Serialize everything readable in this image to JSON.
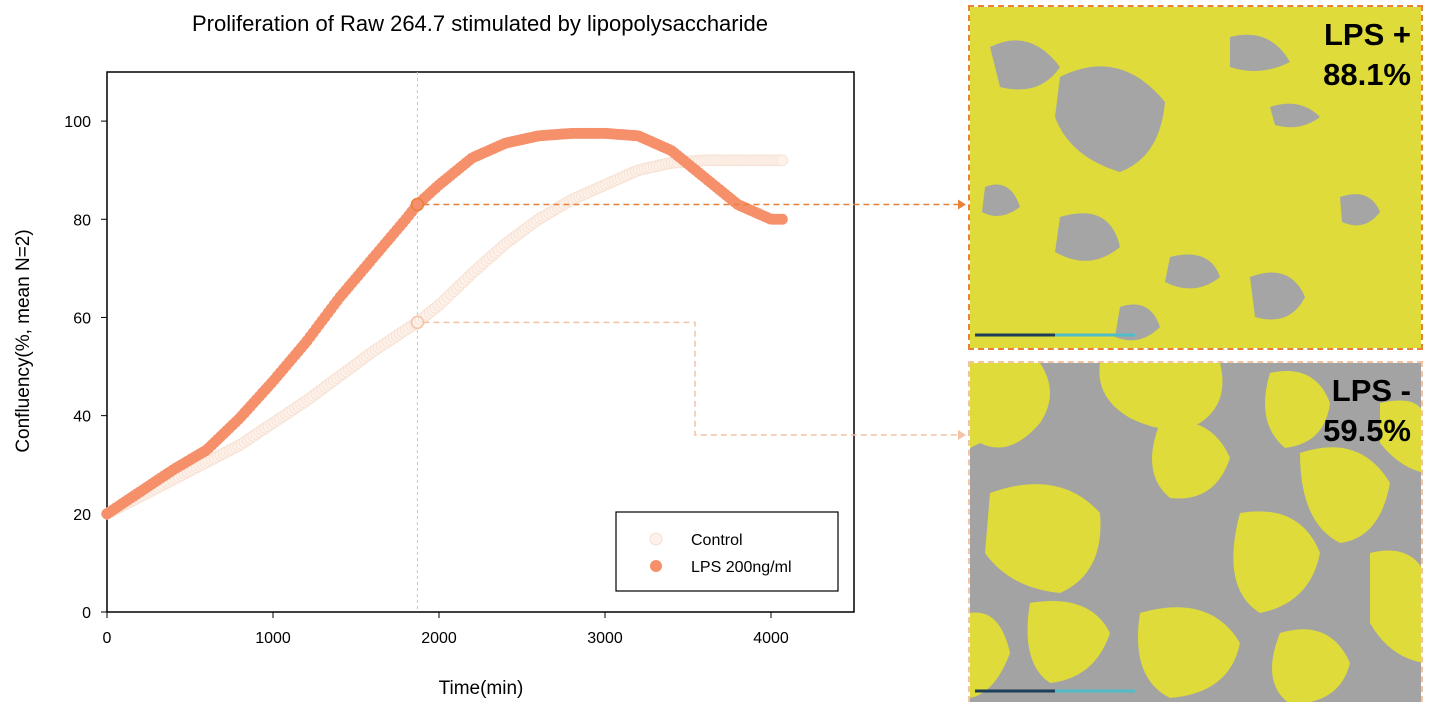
{
  "chart_data": {
    "type": "scatter",
    "title": "Proliferation of Raw 264.7 stimulated by lipopolysaccharide",
    "xlabel": "Time(min)",
    "ylabel": "Confluency(%, mean N=2)",
    "xlim": [
      0,
      4500
    ],
    "ylim": [
      0,
      110
    ],
    "xticks": [
      0,
      1000,
      2000,
      3000,
      4000
    ],
    "yticks": [
      0,
      20,
      40,
      60,
      80,
      100
    ],
    "grid": false,
    "legend_position": "bottom-right",
    "marker_line_x": 1870,
    "series": [
      {
        "name": "Control",
        "color": "#fdf1e9",
        "x": [
          0,
          200,
          400,
          600,
          800,
          1000,
          1200,
          1400,
          1600,
          1800,
          1870,
          2000,
          2200,
          2400,
          2600,
          2800,
          3000,
          3200,
          3400,
          3600,
          3800,
          4000,
          4080
        ],
        "y": [
          20,
          23.5,
          27,
          30.5,
          34,
          38.5,
          43,
          48,
          53,
          57.5,
          59,
          62.5,
          69,
          75,
          80,
          84,
          87,
          90,
          91.5,
          92,
          92,
          92,
          92
        ]
      },
      {
        "name": "LPS 200ng/ml",
        "color": "#f5906b",
        "x": [
          0,
          200,
          400,
          600,
          800,
          1000,
          1200,
          1400,
          1600,
          1800,
          1870,
          2000,
          2200,
          2400,
          2600,
          2800,
          3000,
          3200,
          3400,
          3600,
          3800,
          4000,
          4080
        ],
        "y": [
          20,
          24.5,
          29,
          33,
          39.5,
          47,
          55,
          64,
          72,
          80,
          83,
          87,
          92.5,
          95.5,
          97,
          97.5,
          97.5,
          97,
          94,
          88.5,
          83,
          80,
          80
        ]
      }
    ],
    "highlight_points": [
      {
        "series": "LPS 200ng/ml",
        "x": 1870,
        "y": 83,
        "color": "#e8823a"
      },
      {
        "series": "Control",
        "x": 1870,
        "y": 59,
        "color": "#f3c3a6"
      }
    ]
  },
  "panels": {
    "top": {
      "line1": "LPS +",
      "line2": "88.1%",
      "border_color": "#e8823a"
    },
    "bottom": {
      "line1": "LPS -",
      "line2": "59.5%",
      "border_color": "#f3c3a6"
    }
  },
  "colors": {
    "cell_mask": "#dedb3a",
    "background_gray": "#a3a3a3"
  }
}
